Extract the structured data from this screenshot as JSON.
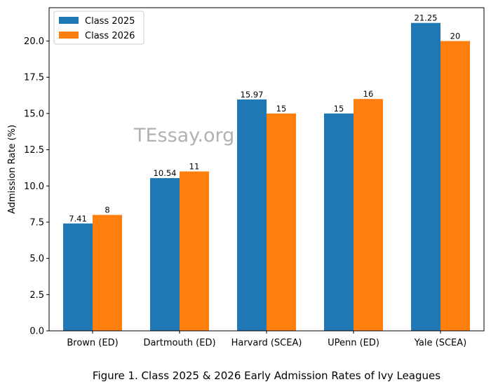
{
  "chart_data": {
    "type": "bar",
    "categories": [
      "Brown (ED)",
      "Dartmouth (ED)",
      "Harvard (SCEA)",
      "UPenn (ED)",
      "Yale (SCEA)"
    ],
    "series": [
      {
        "name": "Class 2025",
        "values": [
          7.41,
          10.54,
          15.97,
          15,
          21.25
        ],
        "labels": [
          "7.41",
          "10.54",
          "15.97",
          "15",
          "21.25"
        ],
        "color": "#1f77b4"
      },
      {
        "name": "Class 2026",
        "values": [
          8,
          11,
          15,
          16,
          20
        ],
        "labels": [
          "8",
          "11",
          "15",
          "16",
          "20"
        ],
        "color": "#ff7f0e"
      }
    ],
    "ylabel": "Admission Rate (%)",
    "ylim": [
      0,
      22.3
    ],
    "yticks": [
      "0.0",
      "2.5",
      "5.0",
      "7.5",
      "10.0",
      "12.5",
      "15.0",
      "17.5",
      "20.0"
    ],
    "legend_position": "top-left",
    "grid": false
  },
  "watermark": "TEssay.org",
  "caption": "Figure 1. Class 2025 & 2026 Early Admission Rates of Ivy Leagues"
}
